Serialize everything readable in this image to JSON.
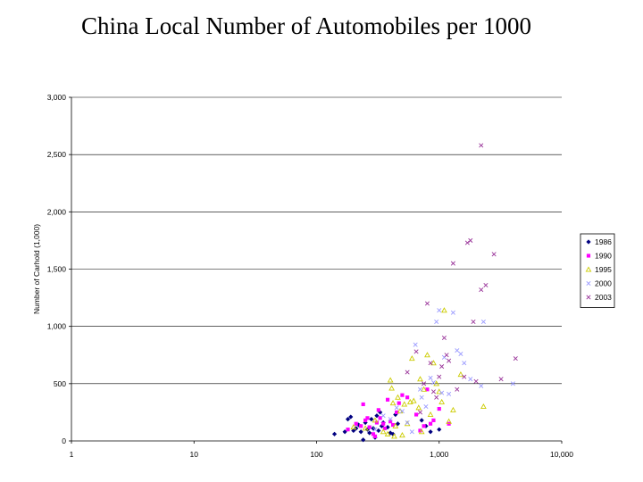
{
  "title": "China Local Number of Automobiles per 1000",
  "chart_data": {
    "type": "scatter",
    "title": "China Local Number of Automobiles per 1000",
    "xlabel": "",
    "ylabel": "Number of Carhold (1,000)",
    "x_scale": "log",
    "xlim": [
      1,
      10000
    ],
    "ylim": [
      0,
      3000
    ],
    "x_ticks": [
      1,
      10,
      100,
      1000,
      10000
    ],
    "x_tick_labels": [
      "1",
      "10",
      "100",
      "1,000",
      "10,000"
    ],
    "y_ticks": [
      0,
      500,
      1000,
      1500,
      2000,
      2500,
      3000
    ],
    "y_tick_labels": [
      "0",
      "500",
      "1,000",
      "1,500",
      "2,000",
      "2,500",
      "3,000"
    ],
    "grid": "horizontal",
    "legend": "right",
    "series": [
      {
        "name": "1986",
        "marker": "diamond",
        "color": "#000080",
        "points": [
          [
            140,
            60
          ],
          [
            170,
            80
          ],
          [
            180,
            190
          ],
          [
            190,
            210
          ],
          [
            200,
            90
          ],
          [
            210,
            110
          ],
          [
            220,
            140
          ],
          [
            230,
            80
          ],
          [
            240,
            10
          ],
          [
            250,
            160
          ],
          [
            260,
            100
          ],
          [
            270,
            70
          ],
          [
            280,
            190
          ],
          [
            290,
            110
          ],
          [
            300,
            30
          ],
          [
            310,
            220
          ],
          [
            320,
            90
          ],
          [
            330,
            250
          ],
          [
            340,
            130
          ],
          [
            350,
            160
          ],
          [
            380,
            120
          ],
          [
            400,
            70
          ],
          [
            420,
            60
          ],
          [
            440,
            230
          ],
          [
            460,
            150
          ],
          [
            720,
            180
          ],
          [
            780,
            130
          ],
          [
            850,
            80
          ],
          [
            1000,
            100
          ]
        ]
      },
      {
        "name": "1990",
        "marker": "square",
        "color": "#ff00ff",
        "points": [
          [
            180,
            100
          ],
          [
            210,
            150
          ],
          [
            230,
            130
          ],
          [
            240,
            320
          ],
          [
            250,
            180
          ],
          [
            260,
            200
          ],
          [
            270,
            120
          ],
          [
            290,
            60
          ],
          [
            300,
            40
          ],
          [
            310,
            160
          ],
          [
            320,
            270
          ],
          [
            330,
            200
          ],
          [
            350,
            150
          ],
          [
            360,
            110
          ],
          [
            380,
            360
          ],
          [
            400,
            170
          ],
          [
            420,
            140
          ],
          [
            450,
            250
          ],
          [
            470,
            330
          ],
          [
            500,
            400
          ],
          [
            550,
            380
          ],
          [
            650,
            230
          ],
          [
            700,
            90
          ],
          [
            750,
            130
          ],
          [
            800,
            450
          ],
          [
            850,
            150
          ],
          [
            900,
            180
          ],
          [
            1000,
            280
          ],
          [
            1200,
            150
          ]
        ]
      },
      {
        "name": "1995",
        "marker": "triangle",
        "color": "#cccc00",
        "points": [
          [
            200,
            120
          ],
          [
            250,
            110
          ],
          [
            300,
            180
          ],
          [
            350,
            80
          ],
          [
            380,
            60
          ],
          [
            400,
            530
          ],
          [
            410,
            460
          ],
          [
            420,
            330
          ],
          [
            430,
            40
          ],
          [
            440,
            130
          ],
          [
            460,
            380
          ],
          [
            480,
            260
          ],
          [
            500,
            50
          ],
          [
            520,
            320
          ],
          [
            550,
            150
          ],
          [
            580,
            340
          ],
          [
            600,
            720
          ],
          [
            620,
            350
          ],
          [
            680,
            290
          ],
          [
            700,
            540
          ],
          [
            720,
            80
          ],
          [
            750,
            450
          ],
          [
            800,
            750
          ],
          [
            850,
            230
          ],
          [
            900,
            680
          ],
          [
            950,
            500
          ],
          [
            1000,
            430
          ],
          [
            1050,
            340
          ],
          [
            1100,
            1140
          ],
          [
            1200,
            170
          ],
          [
            1300,
            270
          ],
          [
            1500,
            580
          ],
          [
            2300,
            300
          ]
        ]
      },
      {
        "name": "2000",
        "marker": "x",
        "color": "#9999ff",
        "points": [
          [
            300,
            100
          ],
          [
            350,
            220
          ],
          [
            400,
            190
          ],
          [
            450,
            290
          ],
          [
            500,
            260
          ],
          [
            550,
            160
          ],
          [
            600,
            80
          ],
          [
            640,
            840
          ],
          [
            700,
            450
          ],
          [
            720,
            380
          ],
          [
            780,
            300
          ],
          [
            850,
            550
          ],
          [
            900,
            510
          ],
          [
            950,
            1040
          ],
          [
            1000,
            1140
          ],
          [
            1050,
            420
          ],
          [
            1100,
            730
          ],
          [
            1200,
            410
          ],
          [
            1300,
            1120
          ],
          [
            1400,
            790
          ],
          [
            1500,
            760
          ],
          [
            1600,
            680
          ],
          [
            1800,
            540
          ],
          [
            2200,
            480
          ],
          [
            2300,
            1040
          ],
          [
            4000,
            500
          ]
        ]
      },
      {
        "name": "2003",
        "marker": "x",
        "color": "#993399",
        "points": [
          [
            550,
            600
          ],
          [
            650,
            780
          ],
          [
            700,
            250
          ],
          [
            750,
            500
          ],
          [
            800,
            1200
          ],
          [
            850,
            680
          ],
          [
            900,
            430
          ],
          [
            950,
            380
          ],
          [
            1000,
            560
          ],
          [
            1050,
            650
          ],
          [
            1100,
            900
          ],
          [
            1150,
            750
          ],
          [
            1200,
            700
          ],
          [
            1300,
            1550
          ],
          [
            1400,
            450
          ],
          [
            1600,
            560
          ],
          [
            1700,
            1730
          ],
          [
            1800,
            1750
          ],
          [
            1900,
            1040
          ],
          [
            2000,
            520
          ],
          [
            2200,
            1320
          ],
          [
            2200,
            2580
          ],
          [
            2400,
            1360
          ],
          [
            2800,
            1630
          ],
          [
            3200,
            540
          ],
          [
            4200,
            720
          ]
        ]
      }
    ]
  }
}
